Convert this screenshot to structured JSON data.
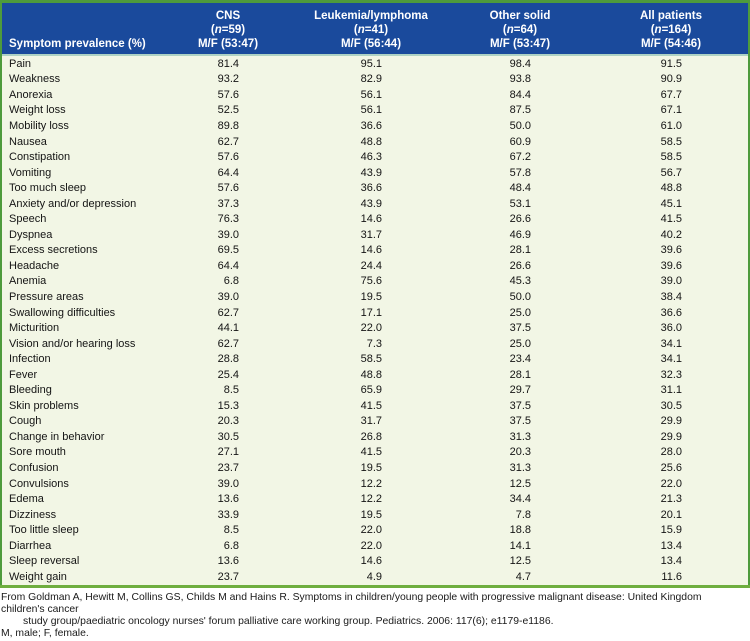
{
  "table": {
    "header": {
      "symptom_col": "Symptom prevalence (%)",
      "columns": [
        {
          "name": "CNS",
          "n_open": "(",
          "n_symbol": "n",
          "n_rest": "=59)",
          "mf": "M/F (53:47)"
        },
        {
          "name": "Leukemia/lymphoma",
          "n_open": "(",
          "n_symbol": "n",
          "n_rest": "=41)",
          "mf": "M/F (56:44)"
        },
        {
          "name": "Other solid",
          "n_open": "(",
          "n_symbol": "n",
          "n_rest": "=64)",
          "mf": "M/F (53:47)"
        },
        {
          "name": "All patients",
          "n_open": "(",
          "n_symbol": "n",
          "n_rest": "=164)",
          "mf": "M/F (54:46)"
        }
      ]
    },
    "rows": [
      {
        "symptom": "Pain",
        "values": [
          "81.4",
          "95.1",
          "98.4",
          "91.5"
        ]
      },
      {
        "symptom": "Weakness",
        "values": [
          "93.2",
          "82.9",
          "93.8",
          "90.9"
        ]
      },
      {
        "symptom": "Anorexia",
        "values": [
          "57.6",
          "56.1",
          "84.4",
          "67.7"
        ]
      },
      {
        "symptom": "Weight loss",
        "values": [
          "52.5",
          "56.1",
          "87.5",
          "67.1"
        ]
      },
      {
        "symptom": "Mobility loss",
        "values": [
          "89.8",
          "36.6",
          "50.0",
          "61.0"
        ]
      },
      {
        "symptom": "Nausea",
        "values": [
          "62.7",
          "48.8",
          "60.9",
          "58.5"
        ]
      },
      {
        "symptom": "Constipation",
        "values": [
          "57.6",
          "46.3",
          "67.2",
          "58.5"
        ]
      },
      {
        "symptom": "Vomiting",
        "values": [
          "64.4",
          "43.9",
          "57.8",
          "56.7"
        ]
      },
      {
        "symptom": "Too much sleep",
        "values": [
          "57.6",
          "36.6",
          "48.4",
          "48.8"
        ]
      },
      {
        "symptom": "Anxiety and/or depression",
        "values": [
          "37.3",
          "43.9",
          "53.1",
          "45.1"
        ]
      },
      {
        "symptom": "Speech",
        "values": [
          "76.3",
          "14.6",
          "26.6",
          "41.5"
        ]
      },
      {
        "symptom": "Dyspnea",
        "values": [
          "39.0",
          "31.7",
          "46.9",
          "40.2"
        ]
      },
      {
        "symptom": "Excess secretions",
        "values": [
          "69.5",
          "14.6",
          "28.1",
          "39.6"
        ]
      },
      {
        "symptom": "Headache",
        "values": [
          "64.4",
          "24.4",
          "26.6",
          "39.6"
        ]
      },
      {
        "symptom": "Anemia",
        "values": [
          "6.8",
          "75.6",
          "45.3",
          "39.0"
        ]
      },
      {
        "symptom": "Pressure areas",
        "values": [
          "39.0",
          "19.5",
          "50.0",
          "38.4"
        ]
      },
      {
        "symptom": "Swallowing difficulties",
        "values": [
          "62.7",
          "17.1",
          "25.0",
          "36.6"
        ]
      },
      {
        "symptom": "Micturition",
        "values": [
          "44.1",
          "22.0",
          "37.5",
          "36.0"
        ]
      },
      {
        "symptom": "Vision and/or hearing loss",
        "values": [
          "62.7",
          "7.3",
          "25.0",
          "34.1"
        ]
      },
      {
        "symptom": "Infection",
        "values": [
          "28.8",
          "58.5",
          "23.4",
          "34.1"
        ]
      },
      {
        "symptom": "Fever",
        "values": [
          "25.4",
          "48.8",
          "28.1",
          "32.3"
        ]
      },
      {
        "symptom": "Bleeding",
        "values": [
          "8.5",
          "65.9",
          "29.7",
          "31.1"
        ]
      },
      {
        "symptom": "Skin problems",
        "values": [
          "15.3",
          "41.5",
          "37.5",
          "30.5"
        ]
      },
      {
        "symptom": "Cough",
        "values": [
          "20.3",
          "31.7",
          "37.5",
          "29.9"
        ]
      },
      {
        "symptom": "Change in behavior",
        "values": [
          "30.5",
          "26.8",
          "31.3",
          "29.9"
        ]
      },
      {
        "symptom": "Sore mouth",
        "values": [
          "27.1",
          "41.5",
          "20.3",
          "28.0"
        ]
      },
      {
        "symptom": "Confusion",
        "values": [
          "23.7",
          "19.5",
          "31.3",
          "25.6"
        ]
      },
      {
        "symptom": "Convulsions",
        "values": [
          "39.0",
          "12.2",
          "12.5",
          "22.0"
        ]
      },
      {
        "symptom": "Edema",
        "values": [
          "13.6",
          "12.2",
          "34.4",
          "21.3"
        ]
      },
      {
        "symptom": "Dizziness",
        "values": [
          "33.9",
          "19.5",
          "7.8",
          "20.1"
        ]
      },
      {
        "symptom": "Too little sleep",
        "values": [
          "8.5",
          "22.0",
          "18.8",
          "15.9"
        ]
      },
      {
        "symptom": "Diarrhea",
        "values": [
          "6.8",
          "22.0",
          "14.1",
          "13.4"
        ]
      },
      {
        "symptom": "Sleep reversal",
        "values": [
          "13.6",
          "14.6",
          "12.5",
          "13.4"
        ]
      },
      {
        "symptom": "Weight gain",
        "values": [
          "23.7",
          "4.9",
          "4.7",
          "11.6"
        ]
      }
    ]
  },
  "footer": {
    "citation_line1": "From Goldman A, Hewitt M, Collins GS, Childs M and Hains R. Symptoms in children/young people with progressive malignant disease: United Kingdom children's cancer",
    "citation_line2": "study group/paediatric oncology nurses' forum palliative care working group. Pediatrics. 2006: 117(6); e1179-e1186.",
    "abbreviations": "M, male; F, female."
  },
  "colors": {
    "header_bg": "#1a4a9c",
    "frame_green": "#4e9b3c",
    "bottom_line_green": "#6fae3f",
    "separator_teal": "#aed2c4",
    "body_bg": "#f2f6e5"
  }
}
